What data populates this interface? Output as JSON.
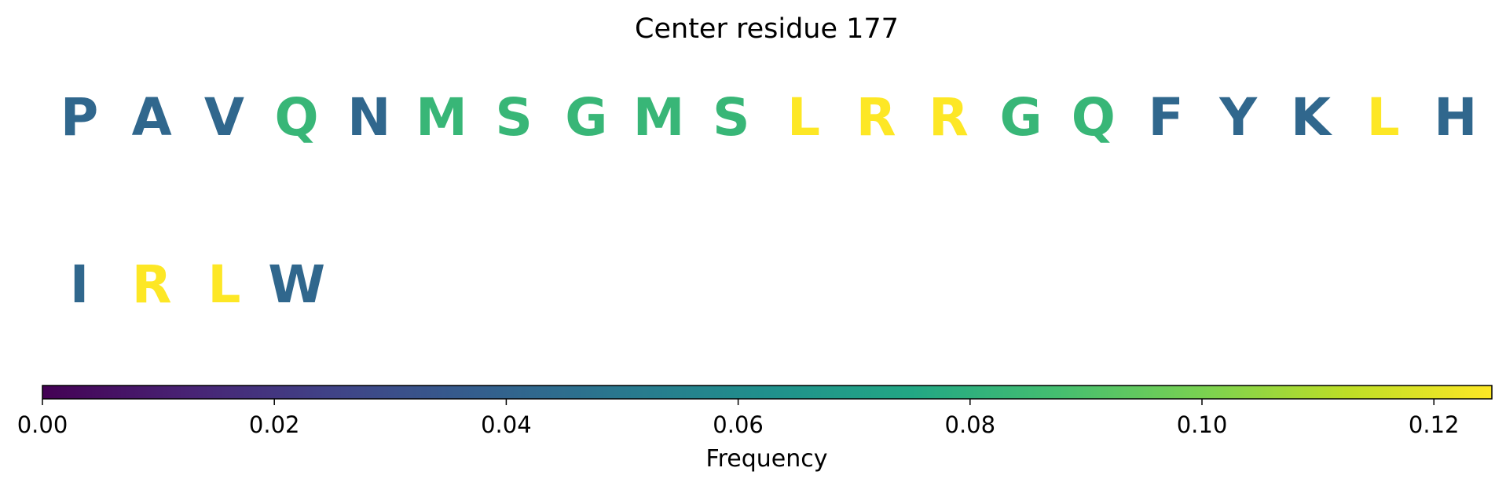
{
  "chart_data": {
    "type": "sequence-logo",
    "title": "Center residue 177",
    "residues": [
      {
        "letter": "P",
        "value": 0.042
      },
      {
        "letter": "A",
        "value": 0.042
      },
      {
        "letter": "V",
        "value": 0.042
      },
      {
        "letter": "Q",
        "value": 0.083
      },
      {
        "letter": "N",
        "value": 0.042
      },
      {
        "letter": "M",
        "value": 0.083
      },
      {
        "letter": "S",
        "value": 0.083
      },
      {
        "letter": "G",
        "value": 0.083
      },
      {
        "letter": "M",
        "value": 0.083
      },
      {
        "letter": "S",
        "value": 0.083
      },
      {
        "letter": "L",
        "value": 0.125
      },
      {
        "letter": "R",
        "value": 0.125
      },
      {
        "letter": "R",
        "value": 0.125
      },
      {
        "letter": "G",
        "value": 0.083
      },
      {
        "letter": "Q",
        "value": 0.083
      },
      {
        "letter": "F",
        "value": 0.042
      },
      {
        "letter": "Y",
        "value": 0.042
      },
      {
        "letter": "K",
        "value": 0.042
      },
      {
        "letter": "L",
        "value": 0.125
      },
      {
        "letter": "H",
        "value": 0.042
      },
      {
        "letter": "I",
        "value": 0.042
      },
      {
        "letter": "R",
        "value": 0.125
      },
      {
        "letter": "L",
        "value": 0.125
      },
      {
        "letter": "W",
        "value": 0.042
      }
    ],
    "colorbar": {
      "label": "Frequency",
      "colormap": "viridis",
      "range": [
        0.0,
        0.125
      ],
      "ticks": [
        "0.00",
        "0.02",
        "0.04",
        "0.06",
        "0.08",
        "0.10",
        "0.12"
      ],
      "tick_values": [
        0.0,
        0.02,
        0.04,
        0.06,
        0.08,
        0.1,
        0.12
      ],
      "orientation": "horizontal",
      "placement": "bottom"
    }
  }
}
